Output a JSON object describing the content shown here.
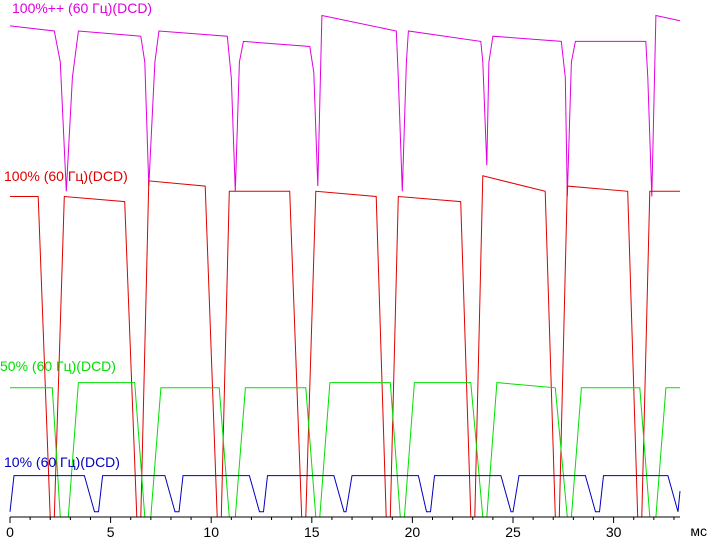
{
  "chart_data": {
    "type": "line",
    "x_label": "мс",
    "xlim": [
      0,
      33.3
    ],
    "ylim": [
      0,
      100
    ],
    "xticks": [
      0,
      5,
      10,
      15,
      20,
      25,
      30
    ],
    "minor_xticks": [
      1,
      2,
      3,
      4,
      6,
      7,
      8,
      9,
      11,
      12,
      13,
      14,
      16,
      17,
      18,
      19,
      21,
      22,
      23,
      24,
      26,
      27,
      28,
      29,
      31,
      32,
      33
    ],
    "series": [
      {
        "name": "100%++ (60 Гц)(DCD)",
        "color": "#e000e0",
        "x": [
          0,
          2.2,
          2.5,
          2.8,
          3.1,
          3.4,
          6.5,
          6.7,
          6.9,
          7.2,
          7.4,
          10.8,
          11.0,
          11.2,
          11.4,
          11.6,
          14.9,
          15.1,
          15.3,
          15.5,
          19.2,
          19.3,
          19.5,
          19.7,
          19.8,
          23.4,
          23.5,
          23.7,
          23.8,
          24.0,
          27.4,
          27.6,
          27.7,
          27.9,
          28.1,
          31.6,
          31.7,
          31.9,
          32.1,
          33.3
        ],
        "values": [
          95,
          94,
          88,
          63,
          85,
          94,
          93,
          88,
          64,
          88,
          94,
          93,
          85,
          63,
          88,
          92,
          91,
          86,
          64,
          97,
          94,
          85,
          63,
          88,
          94,
          92,
          88,
          68,
          88,
          93,
          92,
          85,
          62,
          88,
          92,
          92,
          85,
          62,
          97,
          96
        ]
      },
      {
        "name": "100% (60 Гц)(DCD)",
        "color": "#e00000",
        "x": [
          0,
          1.4,
          2.0,
          2.2,
          2.7,
          5.7,
          6.3,
          6.5,
          6.9,
          9.7,
          10.3,
          10.5,
          10.9,
          13.9,
          14.5,
          14.7,
          15.2,
          18.2,
          18.7,
          18.9,
          19.3,
          22.4,
          22.9,
          23.1,
          23.5,
          26.6,
          27.1,
          27.3,
          27.7,
          30.7,
          31.2,
          31.4,
          31.8,
          33.3
        ],
        "values": [
          62,
          62,
          0,
          0,
          62,
          61,
          0,
          0,
          65,
          64,
          0,
          0,
          63,
          63,
          0,
          0,
          63,
          62,
          0,
          0,
          62,
          61,
          0,
          0,
          66,
          63,
          0,
          0,
          64,
          63,
          0,
          0,
          63,
          63
        ]
      },
      {
        "name": "50% (60 Гц)(DCD)",
        "color": "#00e000",
        "x": [
          0,
          2.1,
          2.5,
          2.9,
          3.4,
          6.2,
          6.7,
          7.0,
          7.5,
          10.4,
          10.9,
          11.2,
          11.7,
          14.7,
          15.2,
          15.4,
          15.9,
          18.9,
          19.4,
          19.6,
          20.1,
          22.9,
          23.5,
          23.7,
          24.2,
          27.1,
          27.7,
          27.9,
          28.4,
          31.3,
          31.8,
          32.1,
          32.6,
          33.3
        ],
        "values": [
          25,
          25,
          0,
          0,
          26,
          26,
          0,
          0,
          25,
          25,
          0,
          0,
          25,
          25,
          0,
          0,
          26,
          26,
          0,
          0,
          26,
          26,
          0,
          0,
          26,
          25,
          0,
          0,
          25,
          25,
          0,
          0,
          25,
          25
        ]
      },
      {
        "name": "10% (60 Гц)(DCD)",
        "color": "#0000c0",
        "x": [
          0,
          0.2,
          3.7,
          4.2,
          4.4,
          4.6,
          7.7,
          8.2,
          8.4,
          8.6,
          11.9,
          12.4,
          12.6,
          12.8,
          16.1,
          16.6,
          16.7,
          17.0,
          20.3,
          20.7,
          20.9,
          21.1,
          24.4,
          24.9,
          25.0,
          25.3,
          28.6,
          29.1,
          29.3,
          29.5,
          32.7,
          33.2,
          33.3
        ],
        "values": [
          1,
          8,
          8,
          1,
          1,
          8,
          8,
          1,
          1,
          8,
          8,
          1,
          1,
          8,
          8,
          1,
          1,
          8,
          8,
          1,
          1,
          8,
          8,
          1,
          1,
          8,
          8,
          1,
          1,
          8,
          8,
          1,
          5
        ]
      }
    ]
  }
}
